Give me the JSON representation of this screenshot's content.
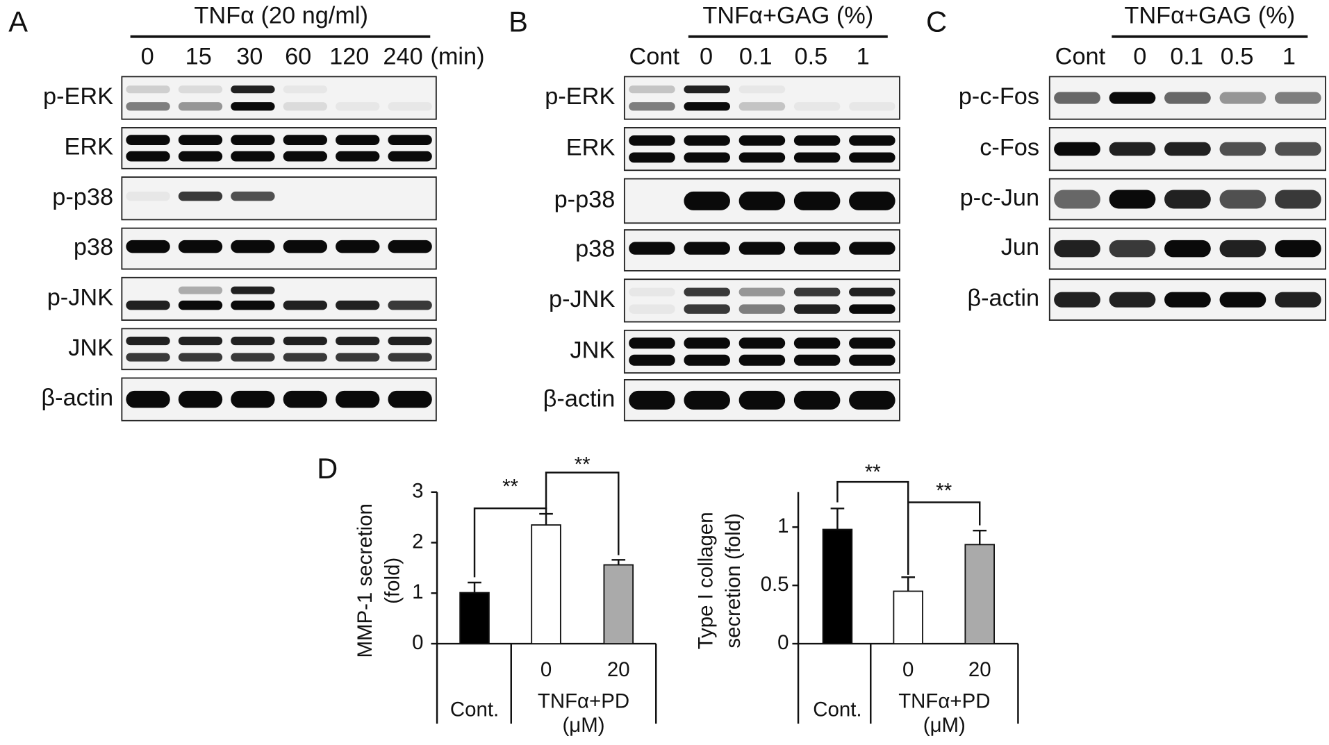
{
  "panels": {
    "A": {
      "letter": "A",
      "treatment": "TNFα (20 ng/ml)",
      "lanes": [
        "0",
        "15",
        "30",
        "60",
        "120",
        "240"
      ],
      "unit": "(min)",
      "rows": [
        "p-ERK",
        "ERK",
        "p-p38",
        "p38",
        "p-JNK",
        "JNK",
        "β-actin"
      ]
    },
    "B": {
      "letter": "B",
      "treatment": "TNFα+GAG (%)",
      "lanes": [
        "Cont",
        "0",
        "0.1",
        "0.5",
        "1"
      ],
      "rows": [
        "p-ERK",
        "ERK",
        "p-p38",
        "p38",
        "p-JNK",
        "JNK",
        "β-actin"
      ]
    },
    "C": {
      "letter": "C",
      "treatment": "TNFα+GAG (%)",
      "lanes": [
        "Cont",
        "0",
        "0.1",
        "0.5",
        "1"
      ],
      "rows": [
        "p-c-Fos",
        "c-Fos",
        "p-c-Jun",
        "Jun",
        "β-actin"
      ]
    },
    "D": {
      "letter": "D"
    }
  },
  "chart_data": [
    {
      "type": "bar",
      "y_label": [
        "MMP-1 secretion",
        "(fold)"
      ],
      "categories": [
        "Cont.",
        "0",
        "20"
      ],
      "group_label": [
        "TNFα+PD",
        "(μM)"
      ],
      "values": [
        1.01,
        2.35,
        1.56
      ],
      "errors": [
        0.2,
        0.22,
        0.1
      ],
      "colors": [
        "#000000",
        "#ffffff",
        "#aaaaaa"
      ],
      "ylim": [
        0,
        3
      ],
      "yticks": [
        0,
        1,
        2,
        3
      ],
      "annotations": [
        "**",
        "**"
      ]
    },
    {
      "type": "bar",
      "y_label": [
        "Type I collagen",
        "secretion (fold)"
      ],
      "categories": [
        "Cont.",
        "0",
        "20"
      ],
      "group_label": [
        "TNFα+PD",
        "(μM)"
      ],
      "values": [
        0.98,
        0.45,
        0.85
      ],
      "errors": [
        0.18,
        0.12,
        0.12
      ],
      "colors": [
        "#000000",
        "#ffffff",
        "#aaaaaa"
      ],
      "ylim": [
        0,
        1.3
      ],
      "yticks": [
        0,
        0.5,
        1
      ],
      "annotations": [
        "**",
        "**"
      ]
    }
  ]
}
